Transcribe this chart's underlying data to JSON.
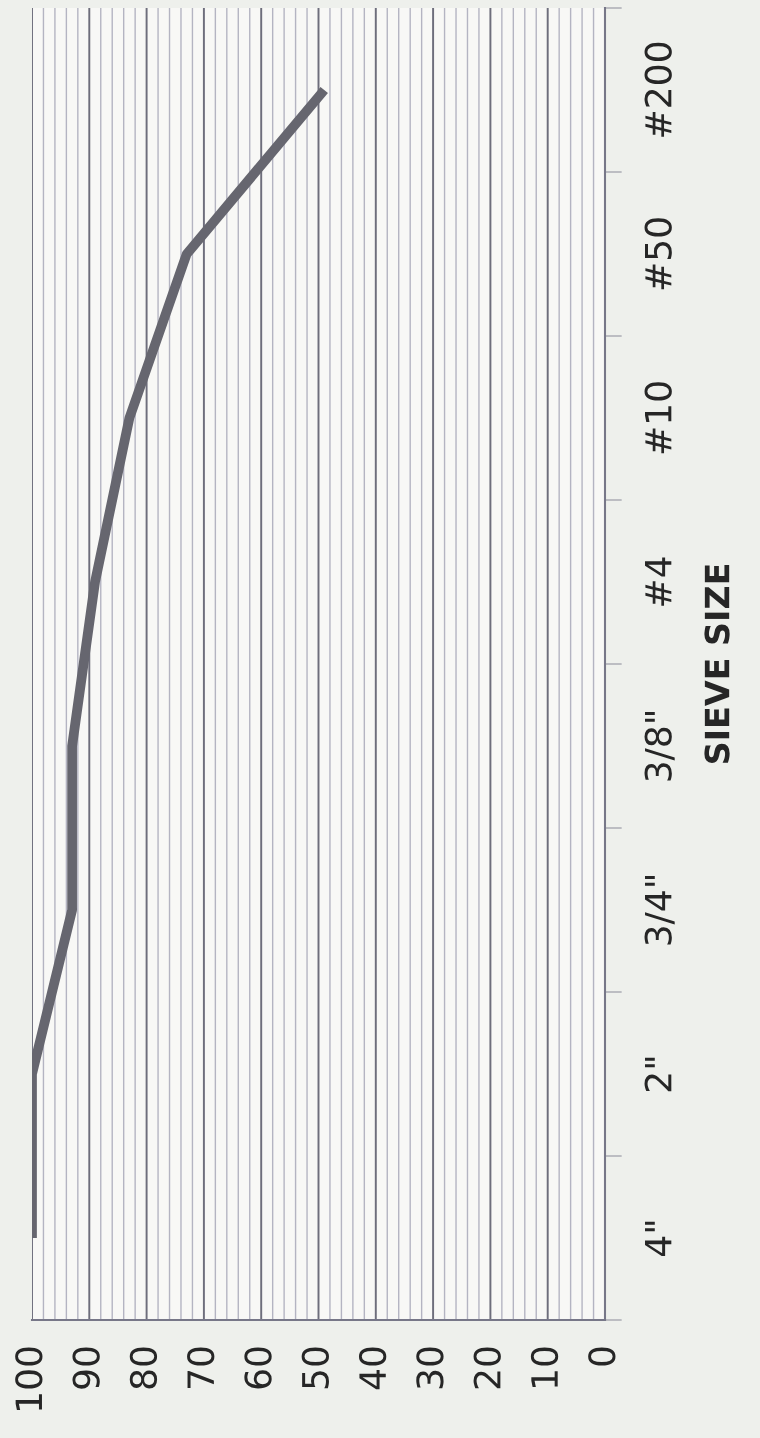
{
  "chart_data": {
    "type": "line",
    "orientation": "horizontal",
    "ylabel": "SIEVE SIZE",
    "categories": [
      "#200",
      "#50",
      "#10",
      "#4",
      "3/8\"",
      "3/4\"",
      "2\"",
      "4\""
    ],
    "series": [
      {
        "color": "#66666f",
        "values": [
          49,
          73,
          83,
          89,
          93,
          93,
          100,
          100
        ]
      }
    ],
    "xlim": [
      100,
      0
    ],
    "xticks": [
      100,
      90,
      80,
      70,
      60,
      50,
      40,
      30,
      20,
      10,
      0
    ],
    "grid": "x",
    "legend": false,
    "marker": "none",
    "line_style": "solid"
  }
}
